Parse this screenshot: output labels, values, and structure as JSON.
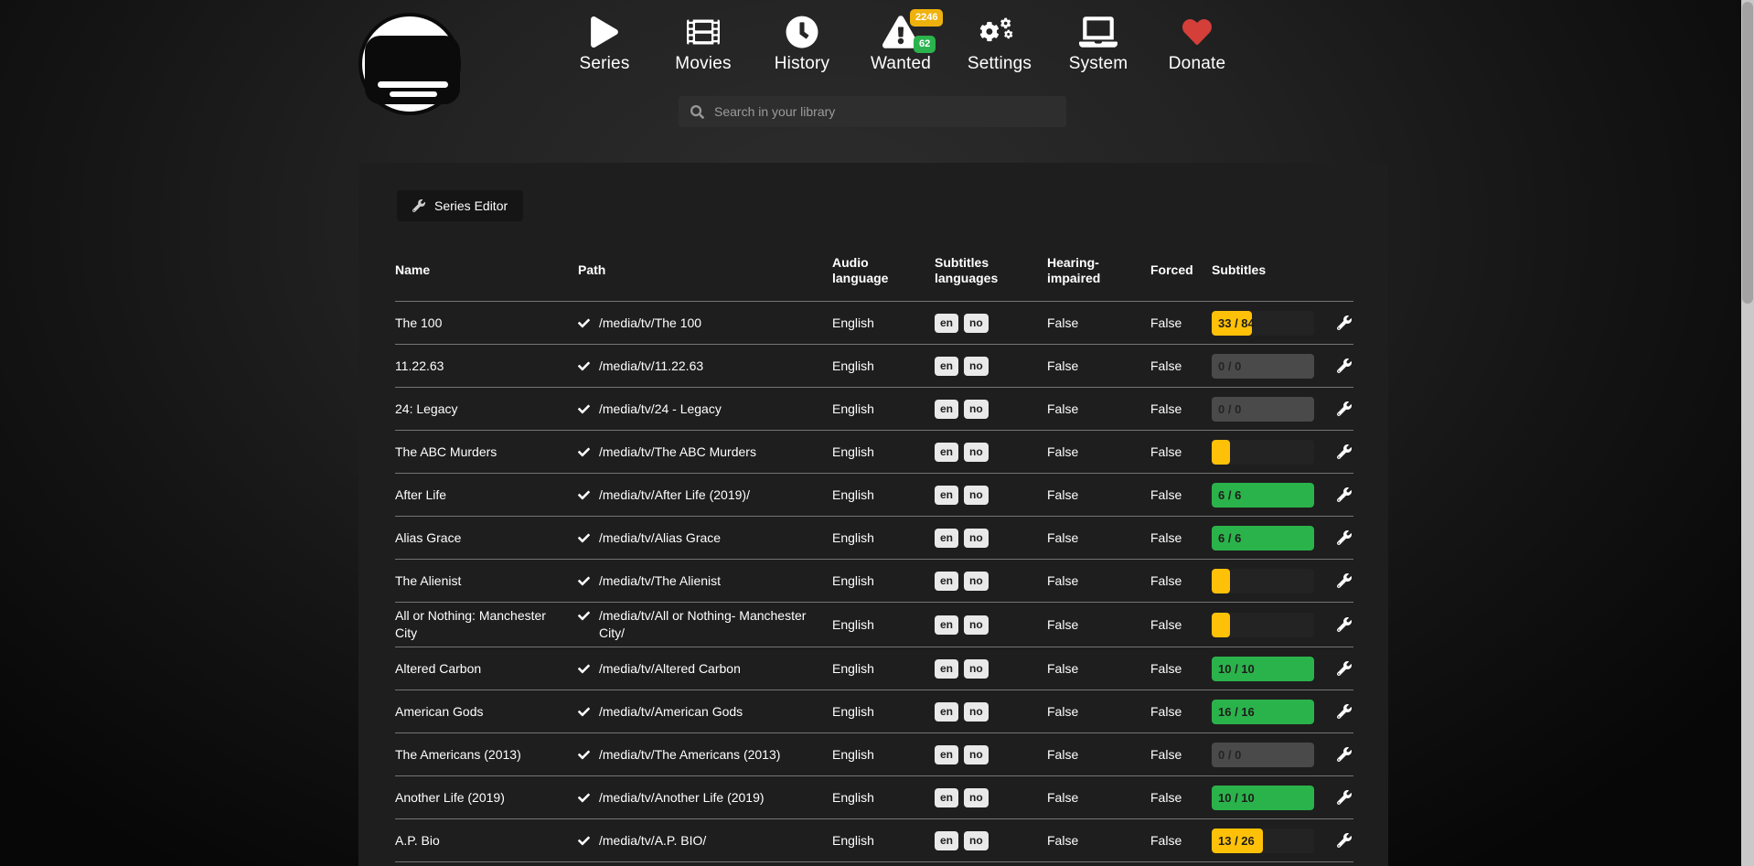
{
  "nav": {
    "items": [
      {
        "label": "Series",
        "icon": "play-icon"
      },
      {
        "label": "Movies",
        "icon": "film-icon"
      },
      {
        "label": "History",
        "icon": "clock-icon"
      },
      {
        "label": "Wanted",
        "icon": "warning-triangle-icon",
        "badges": [
          {
            "value": "2246",
            "color": "#efb20d"
          },
          {
            "value": "62",
            "color": "#2bb44e"
          }
        ]
      },
      {
        "label": "Settings",
        "icon": "gears-icon"
      },
      {
        "label": "System",
        "icon": "laptop-icon"
      },
      {
        "label": "Donate",
        "icon": "heart-icon",
        "icon_color": "#d43f3a"
      }
    ],
    "search": {
      "placeholder": "Search in your library"
    }
  },
  "toolbar": {
    "series_editor_label": "Series Editor"
  },
  "colors": {
    "warning": "#ffc107",
    "success": "#2bb34b",
    "disabled_track": "#4a4a4a"
  },
  "table": {
    "headers": [
      "Name",
      "Path",
      "Audio language",
      "Subtitles languages",
      "Hearing-impaired",
      "Forced",
      "Subtitles"
    ],
    "rows": [
      {
        "name": "The 100",
        "path": "/media/tv/The 100",
        "audio": "English",
        "subs_langs": [
          "en",
          "no"
        ],
        "hearing": "False",
        "forced": "False",
        "progress": {
          "label": "33 / 84",
          "pct": 39,
          "state": "warning"
        }
      },
      {
        "name": "11.22.63",
        "path": "/media/tv/11.22.63",
        "audio": "English",
        "subs_langs": [
          "en",
          "no"
        ],
        "hearing": "False",
        "forced": "False",
        "progress": {
          "label": "0 / 0",
          "pct": 0,
          "state": "disabled"
        }
      },
      {
        "name": "24: Legacy",
        "path": "/media/tv/24 - Legacy",
        "audio": "English",
        "subs_langs": [
          "en",
          "no"
        ],
        "hearing": "False",
        "forced": "False",
        "progress": {
          "label": "0 / 0",
          "pct": 0,
          "state": "disabled"
        }
      },
      {
        "name": "The ABC Murders",
        "path": "/media/tv/The ABC Murders",
        "audio": "English",
        "subs_langs": [
          "en",
          "no"
        ],
        "hearing": "False",
        "forced": "False",
        "progress": {
          "label": "",
          "pct": 18,
          "state": "warning"
        }
      },
      {
        "name": "After Life",
        "path": "/media/tv/After Life (2019)/",
        "audio": "English",
        "subs_langs": [
          "en",
          "no"
        ],
        "hearing": "False",
        "forced": "False",
        "progress": {
          "label": "6 / 6",
          "pct": 100,
          "state": "success"
        }
      },
      {
        "name": "Alias Grace",
        "path": "/media/tv/Alias Grace",
        "audio": "English",
        "subs_langs": [
          "en",
          "no"
        ],
        "hearing": "False",
        "forced": "False",
        "progress": {
          "label": "6 / 6",
          "pct": 100,
          "state": "success"
        }
      },
      {
        "name": "The Alienist",
        "path": "/media/tv/The Alienist",
        "audio": "English",
        "subs_langs": [
          "en",
          "no"
        ],
        "hearing": "False",
        "forced": "False",
        "progress": {
          "label": "",
          "pct": 18,
          "state": "warning"
        }
      },
      {
        "name": "All or Nothing: Manchester City",
        "path": "/media/tv/All or Nothing- Manchester City/",
        "audio": "English",
        "subs_langs": [
          "en",
          "no"
        ],
        "hearing": "False",
        "forced": "False",
        "progress": {
          "label": "",
          "pct": 18,
          "state": "warning"
        }
      },
      {
        "name": "Altered Carbon",
        "path": "/media/tv/Altered Carbon",
        "audio": "English",
        "subs_langs": [
          "en",
          "no"
        ],
        "hearing": "False",
        "forced": "False",
        "progress": {
          "label": "10 / 10",
          "pct": 100,
          "state": "success"
        }
      },
      {
        "name": "American Gods",
        "path": "/media/tv/American Gods",
        "audio": "English",
        "subs_langs": [
          "en",
          "no"
        ],
        "hearing": "False",
        "forced": "False",
        "progress": {
          "label": "16 / 16",
          "pct": 100,
          "state": "success"
        }
      },
      {
        "name": "The Americans (2013)",
        "path": "/media/tv/The Americans (2013)",
        "audio": "English",
        "subs_langs": [
          "en",
          "no"
        ],
        "hearing": "False",
        "forced": "False",
        "progress": {
          "label": "0 / 0",
          "pct": 0,
          "state": "disabled"
        }
      },
      {
        "name": "Another Life (2019)",
        "path": "/media/tv/Another Life (2019)",
        "audio": "English",
        "subs_langs": [
          "en",
          "no"
        ],
        "hearing": "False",
        "forced": "False",
        "progress": {
          "label": "10 / 10",
          "pct": 100,
          "state": "success"
        }
      },
      {
        "name": "A.P. Bio",
        "path": "/media/tv/A.P. BIO/",
        "audio": "English",
        "subs_langs": [
          "en",
          "no"
        ],
        "hearing": "False",
        "forced": "False",
        "progress": {
          "label": "13 / 26",
          "pct": 50,
          "state": "warning"
        }
      }
    ]
  }
}
